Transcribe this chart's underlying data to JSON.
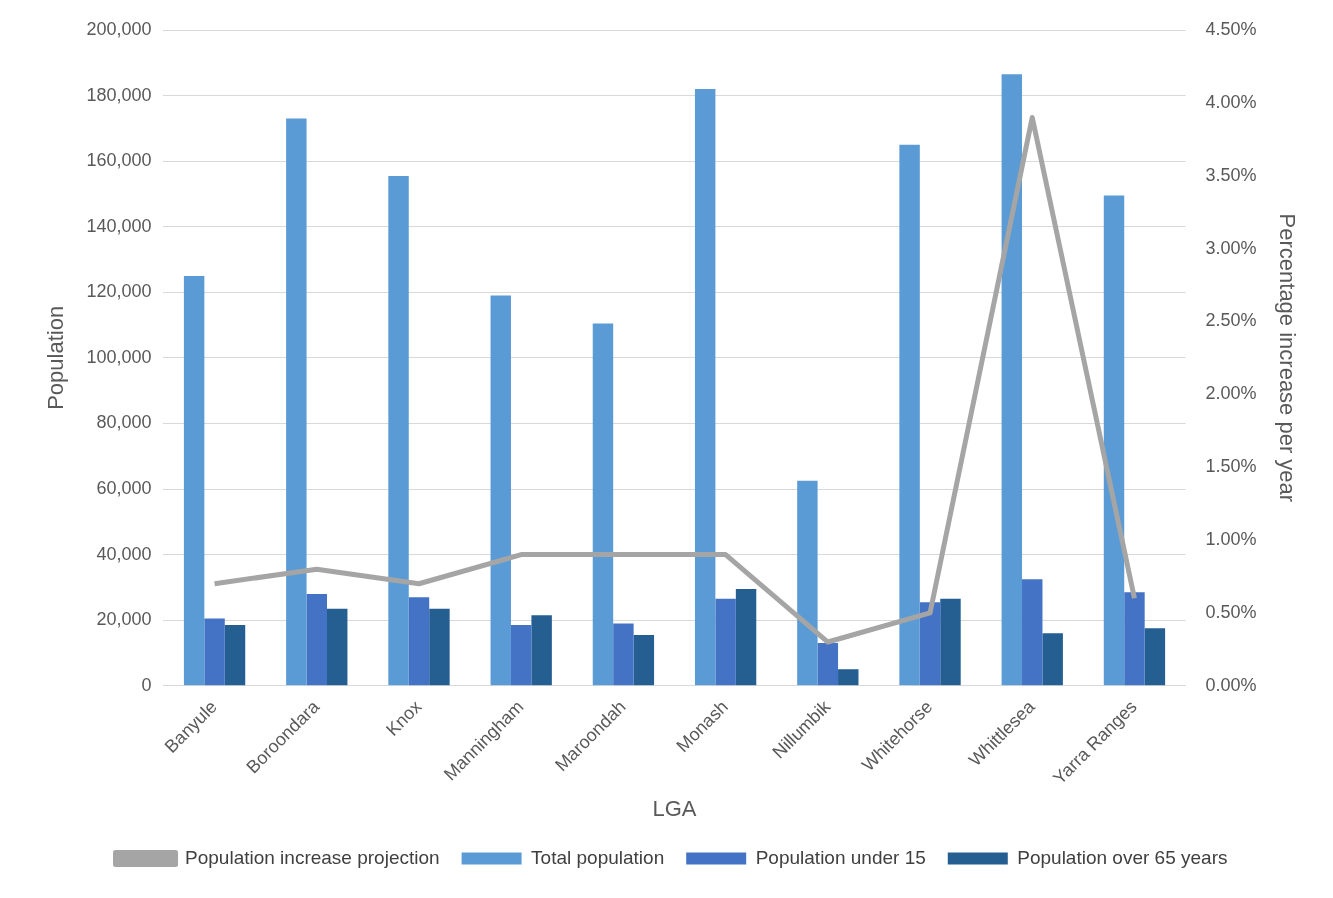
{
  "chart_data": {
    "type": "bar",
    "xlabel": "LGA",
    "ylabel": "Population",
    "y2label": "Percentage increase per year",
    "categories": [
      "Banyule",
      "Boroondara",
      "Knox",
      "Manningham",
      "Maroondah",
      "Monash",
      "Nillumbik",
      "Whitehorse",
      "Whittlesea",
      "Yarra Ranges"
    ],
    "series": [
      {
        "name": "Total population",
        "color": "#5b9bd5",
        "values": [
          125000,
          173000,
          155500,
          119000,
          110500,
          182000,
          62500,
          165000,
          186500,
          149500
        ]
      },
      {
        "name": "Population under 15",
        "color": "#4472c4",
        "values": [
          20500,
          28000,
          27000,
          18500,
          19000,
          26500,
          13000,
          25500,
          32500,
          28500
        ]
      },
      {
        "name": "Population over 65 years",
        "color": "#255e91",
        "values": [
          18500,
          23500,
          23500,
          21500,
          15500,
          29500,
          5000,
          26500,
          16000,
          17500
        ]
      },
      {
        "name": "Population increase projection",
        "type": "line",
        "axis": "y2",
        "color": "#a5a5a5",
        "values": [
          0.7,
          0.8,
          0.7,
          0.9,
          0.9,
          0.9,
          0.3,
          0.5,
          3.9,
          0.6
        ]
      }
    ],
    "ylim": [
      0,
      200000
    ],
    "yticks": [
      {
        "value": 0,
        "label": "0"
      },
      {
        "value": 20000,
        "label": "20,000"
      },
      {
        "value": 40000,
        "label": "40,000"
      },
      {
        "value": 60000,
        "label": "60,000"
      },
      {
        "value": 80000,
        "label": "80,000"
      },
      {
        "value": 100000,
        "label": "100,000"
      },
      {
        "value": 120000,
        "label": "120,000"
      },
      {
        "value": 140000,
        "label": "140,000"
      },
      {
        "value": 160000,
        "label": "160,000"
      },
      {
        "value": 180000,
        "label": "180,000"
      },
      {
        "value": 200000,
        "label": "200,000"
      }
    ],
    "y2lim": [
      0,
      4.5
    ],
    "y2ticks": [
      {
        "value": 0,
        "label": "0.00%"
      },
      {
        "value": 0.5,
        "label": "0.50%"
      },
      {
        "value": 1,
        "label": "1.00%"
      },
      {
        "value": 1.5,
        "label": "1.50%"
      },
      {
        "value": 2,
        "label": "2.00%"
      },
      {
        "value": 2.5,
        "label": "2.50%"
      },
      {
        "value": 3,
        "label": "3.00%"
      },
      {
        "value": 3.5,
        "label": "3.50%"
      },
      {
        "value": 4,
        "label": "4.00%"
      },
      {
        "value": 4.5,
        "label": "4.50%"
      }
    ],
    "grid": "y",
    "legend": "bottom",
    "marker": "none",
    "line_style": "solid"
  }
}
